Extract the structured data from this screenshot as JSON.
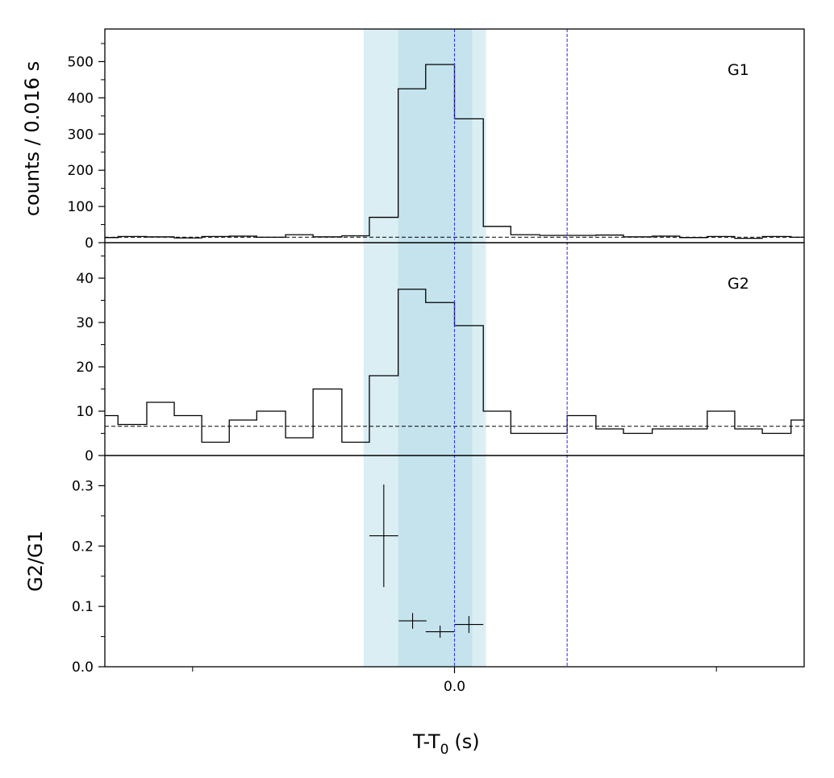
{
  "chart_data": {
    "type": "histogram",
    "xlabel": "T-T",
    "xlabel_subscript": "0",
    "xlabel_unit": "(s)",
    "ylabel_counts": "counts /  0.016 s",
    "x_tick_labels": [
      {
        "x": 0.0,
        "label": "0.0"
      }
    ],
    "x_minor_ticks": [
      -0.1,
      0.1
    ],
    "xlim": [
      -0.1335,
      0.1335
    ],
    "bin_edges": [
      -0.1335,
      -0.1285,
      -0.1175,
      -0.107,
      -0.0965,
      -0.086,
      -0.0755,
      -0.0645,
      -0.054,
      -0.043,
      -0.0325,
      -0.0215,
      -0.011,
      0.0,
      0.011,
      0.0215,
      0.0325,
      0.043,
      0.054,
      0.0645,
      0.0755,
      0.086,
      0.0965,
      0.107,
      0.1175,
      0.1285,
      0.1335
    ],
    "shaded_regions": [
      {
        "range": [
          -0.0347,
          0.012
        ],
        "color": "#dbeef4"
      },
      {
        "range": [
          -0.0215,
          0.0068
        ],
        "color": "#c4e3ed"
      }
    ],
    "vertical_lines": [
      0.0,
      0.043
    ],
    "vline_color": "#3a3ae8",
    "panels": [
      {
        "label": "G1",
        "ylim": [
          0,
          590
        ],
        "y_ticks": [
          0,
          100,
          200,
          300,
          400,
          500
        ],
        "y_tick_labels": [
          "0",
          "100",
          "200",
          "300",
          "400",
          "500"
        ],
        "background": 15,
        "counts": [
          14,
          17,
          16,
          13,
          17,
          18,
          15,
          22,
          16,
          19,
          70,
          425,
          492,
          342,
          45,
          22,
          20,
          20,
          21,
          16,
          18,
          14,
          17,
          12,
          17,
          15
        ]
      },
      {
        "label": "G2",
        "ylim": [
          0,
          48
        ],
        "y_ticks": [
          0,
          10,
          20,
          30,
          40
        ],
        "y_tick_labels": [
          "0",
          "10",
          "20",
          "30",
          "40"
        ],
        "background": 6.6,
        "counts": [
          9,
          7,
          12,
          9,
          3,
          8,
          10,
          4,
          15,
          3,
          18,
          37.5,
          34.5,
          29.3,
          10,
          5,
          5,
          9,
          6,
          5,
          6,
          6,
          10,
          6,
          5,
          8
        ]
      },
      {
        "label": "G2/G1",
        "ylim": [
          0,
          0.35
        ],
        "y_ticks": [
          0.0,
          0.1,
          0.2,
          0.3
        ],
        "y_tick_labels": [
          "0.0",
          "0.1",
          "0.2",
          "0.3"
        ],
        "ratio_points": [
          {
            "x": -0.027,
            "xerr": 0.0055,
            "y": 0.217,
            "yerr_low": 0.085,
            "yerr_high": 0.085
          },
          {
            "x": -0.016,
            "xerr": 0.0053,
            "y": 0.076,
            "yerr_low": 0.013,
            "yerr_high": 0.013
          },
          {
            "x": -0.0055,
            "xerr": 0.0055,
            "y": 0.058,
            "yerr_low": 0.01,
            "yerr_high": 0.01
          },
          {
            "x": 0.0055,
            "xerr": 0.0055,
            "y": 0.07,
            "yerr_low": 0.014,
            "yerr_high": 0.014
          }
        ]
      }
    ]
  }
}
